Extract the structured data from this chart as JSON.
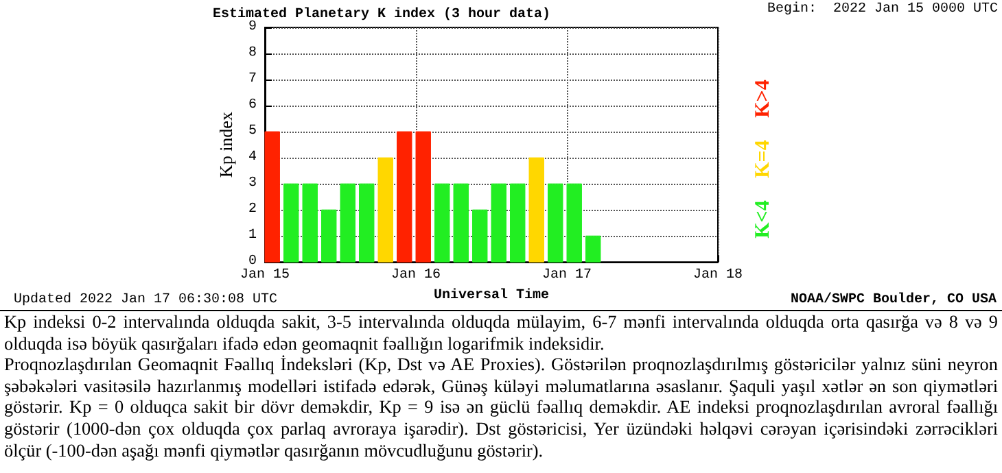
{
  "chart_data": {
    "type": "bar",
    "title": "Estimated Planetary K index (3 hour data)",
    "xlabel": "Universal Time",
    "ylabel": "Kp index",
    "x": [
      "2022-01-15T00:00",
      "2022-01-15T03:00",
      "2022-01-15T06:00",
      "2022-01-15T09:00",
      "2022-01-15T12:00",
      "2022-01-15T15:00",
      "2022-01-15T18:00",
      "2022-01-15T21:00",
      "2022-01-16T00:00",
      "2022-01-16T03:00",
      "2022-01-16T06:00",
      "2022-01-16T09:00",
      "2022-01-16T12:00",
      "2022-01-16T15:00",
      "2022-01-16T18:00",
      "2022-01-16T21:00",
      "2022-01-17T00:00",
      "2022-01-17T03:00"
    ],
    "series": [
      {
        "name": "K<4",
        "color": "#22ee22",
        "values": [
          null,
          3,
          3,
          2,
          3,
          3,
          null,
          null,
          null,
          3,
          3,
          2,
          3,
          3,
          null,
          3,
          3,
          1
        ]
      },
      {
        "name": "K=4",
        "color": "#ffd700",
        "values": [
          null,
          null,
          null,
          null,
          null,
          null,
          4,
          null,
          null,
          null,
          null,
          null,
          null,
          null,
          4,
          null,
          null,
          null
        ]
      },
      {
        "name": "K>4",
        "color": "#ff2200",
        "values": [
          5,
          null,
          null,
          null,
          null,
          null,
          null,
          5,
          5,
          null,
          null,
          null,
          null,
          null,
          null,
          null,
          null,
          null
        ]
      }
    ],
    "xlim": [
      "2022-01-15T00:00",
      "2022-01-18T00:00"
    ],
    "xticks": [
      {
        "value": "2022-01-15T00:00",
        "label": "Jan 15"
      },
      {
        "value": "2022-01-16T00:00",
        "label": "Jan 16"
      },
      {
        "value": "2022-01-17T00:00",
        "label": "Jan 17"
      },
      {
        "value": "2022-01-18T00:00",
        "label": "Jan 18"
      }
    ],
    "ylim": [
      0,
      9
    ],
    "yticks": [
      0,
      1,
      2,
      3,
      4,
      5,
      6,
      7,
      8,
      9
    ],
    "grid": true,
    "legend": "right",
    "annotations": [
      "Begin:  2022 Jan 15 0000 UTC",
      "Updated 2022 Jan 17 06:30:08 UTC",
      "NOAA/SWPC Boulder, CO USA",
      "Kp indeksi 0-2 intervalında olduqda sakit, 3-5 intervalında olduqda mülayim, 6-7 mənfi intervalında olduqda orta qasırğa və 8 və 9 olduqda isə böyük qasırğaları ifadə edən geomaqnit fəallığın logarifmik indeksidir.",
      "Proqnozlaşdırılan Geomaqnit Fəallıq İndeksləri (Kp, Dst və AE Proxies). Göstərilən proqnozlaşdırılmış göstəricilər yalnız süni neyron şəbəkələri vasitəsilə hazırlanmış modelləri istifadə edərək, Günəş küləyi məlumatlarına əsaslanır. Şaquli yaşıl xətlər ən son qiymətləri göstərir. Kp = 0 olduqca sakit bir dövr deməkdir, Kp = 9 isə ən güclü fəallıq deməkdir. AE indeksi proqnozlaşdırılan avroral fəallığı göstərir (1000-dən çox olduqda çox parlaq avroraya işarədir). Dst göstəricisi, Yer üzündəki həlqəvi cərəyan içərisindəki zərrəcikləri ölçür (-100-dən aşağı mənfi qiymətlər qasırğanın mövcudluğunu göstərir)."
    ]
  }
}
